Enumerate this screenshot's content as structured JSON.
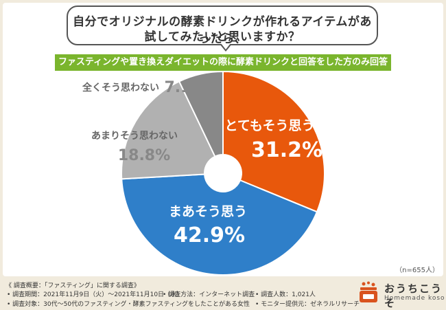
{
  "question": {
    "line1": "自分でオリジナルの酵素ドリンクが作れるアイテムがあったら、",
    "line2": "試してみたいと思いますか？"
  },
  "banner": "ファスティングや置き換えダイエットの際に酵素ドリンクと回答をした方のみ回答",
  "sample_note": "（n=655人）",
  "chart_data": {
    "type": "pie",
    "donut": true,
    "slices": [
      {
        "label": "とてもそう思う",
        "value": 31.2,
        "display": "31.2%",
        "color": "#e8580c"
      },
      {
        "label": "まあそう思う",
        "value": 42.9,
        "display": "42.9%",
        "color": "#2f7fc9"
      },
      {
        "label": "あまりそう思わない",
        "value": 18.8,
        "display": "18.8%",
        "color": "#b1b1b1"
      },
      {
        "label": "全くそう思わない",
        "value": 7.1,
        "display": "7.1%",
        "color": "#888888"
      }
    ]
  },
  "footer": {
    "title": "《 調査概要：「ファスティング」に関する調査》",
    "period": "• 調査期間：2021年11月9日（火）～2021年11月10日（水）",
    "method": "• 調査方法：インターネット調査",
    "count": "• 調査人数：1,021人",
    "target": "• 調査対象：30代～50代のファスティング・酵素ファスティングをしたことがある女性",
    "provider": "• モニター提供元：ゼネラルリサーチ"
  },
  "logo": {
    "name": "おうちこうそ",
    "sub": "Homemade koso",
    "icon": "jar-icon",
    "color": "#d9531e"
  }
}
